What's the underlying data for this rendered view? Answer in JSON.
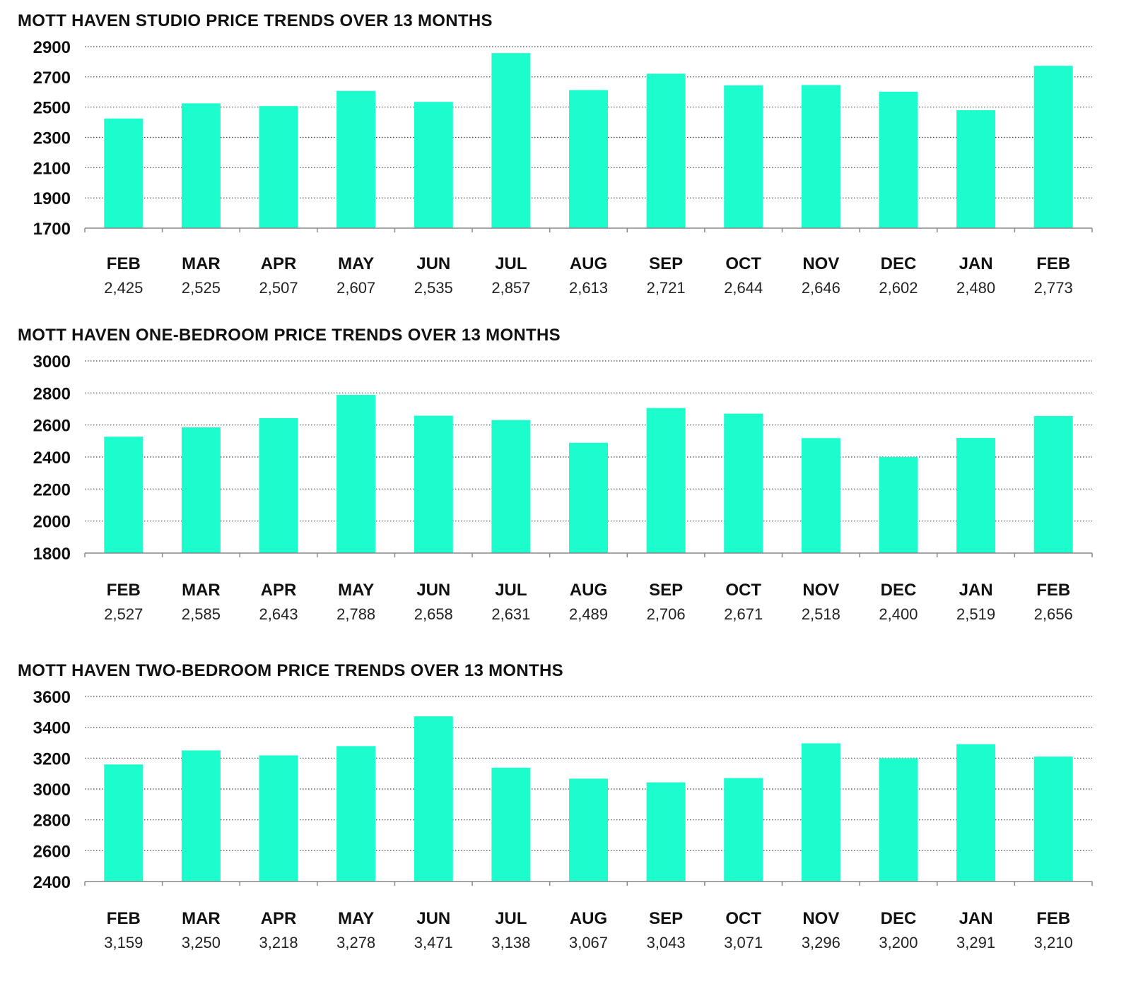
{
  "colors": {
    "bar": "#1cfccc",
    "grid": "#444444",
    "axis": "#888888",
    "text": "#111111"
  },
  "chart_data": [
    {
      "type": "bar",
      "title": "MOTT HAVEN STUDIO PRICE TRENDS OVER 13 MONTHS",
      "categories": [
        "FEB",
        "MAR",
        "APR",
        "MAY",
        "JUN",
        "JUL",
        "AUG",
        "SEP",
        "OCT",
        "NOV",
        "DEC",
        "JAN",
        "FEB"
      ],
      "values": [
        2425,
        2525,
        2507,
        2607,
        2535,
        2857,
        2613,
        2721,
        2644,
        2646,
        2602,
        2480,
        2773
      ],
      "value_labels": [
        "2,425",
        "2,525",
        "2,507",
        "2,607",
        "2,535",
        "2,857",
        "2,613",
        "2,721",
        "2,644",
        "2,646",
        "2,602",
        "2,480",
        "2,773"
      ],
      "yticks": [
        "1700",
        "1900",
        "2100",
        "2300",
        "2500",
        "2700",
        "2900"
      ],
      "ylim": [
        1700,
        2900
      ],
      "xlabel": "",
      "ylabel": "",
      "grid": true
    },
    {
      "type": "bar",
      "title": "MOTT HAVEN ONE-BEDROOM PRICE TRENDS OVER 13 MONTHS",
      "categories": [
        "FEB",
        "MAR",
        "APR",
        "MAY",
        "JUN",
        "JUL",
        "AUG",
        "SEP",
        "OCT",
        "NOV",
        "DEC",
        "JAN",
        "FEB"
      ],
      "values": [
        2527,
        2585,
        2643,
        2788,
        2658,
        2631,
        2489,
        2706,
        2671,
        2518,
        2400,
        2519,
        2656
      ],
      "value_labels": [
        "2,527",
        "2,585",
        "2,643",
        "2,788",
        "2,658",
        "2,631",
        "2,489",
        "2,706",
        "2,671",
        "2,518",
        "2,400",
        "2,519",
        "2,656"
      ],
      "yticks": [
        "1800",
        "2000",
        "2200",
        "2400",
        "2600",
        "2800",
        "3000"
      ],
      "ylim": [
        1800,
        3000
      ],
      "xlabel": "",
      "ylabel": "",
      "grid": true
    },
    {
      "type": "bar",
      "title": "MOTT HAVEN TWO-BEDROOM PRICE TRENDS OVER 13 MONTHS",
      "categories": [
        "FEB",
        "MAR",
        "APR",
        "MAY",
        "JUN",
        "JUL",
        "AUG",
        "SEP",
        "OCT",
        "NOV",
        "DEC",
        "JAN",
        "FEB"
      ],
      "values": [
        3159,
        3250,
        3218,
        3278,
        3471,
        3138,
        3067,
        3043,
        3071,
        3296,
        3200,
        3291,
        3210
      ],
      "value_labels": [
        "3,159",
        "3,250",
        "3,218",
        "3,278",
        "3,471",
        "3,138",
        "3,067",
        "3,043",
        "3,071",
        "3,296",
        "3,200",
        "3,291",
        "3,210"
      ],
      "yticks": [
        "2400",
        "2600",
        "2800",
        "3000",
        "3200",
        "3400",
        "3600"
      ],
      "ylim": [
        2400,
        3600
      ],
      "xlabel": "",
      "ylabel": "",
      "grid": true
    }
  ]
}
